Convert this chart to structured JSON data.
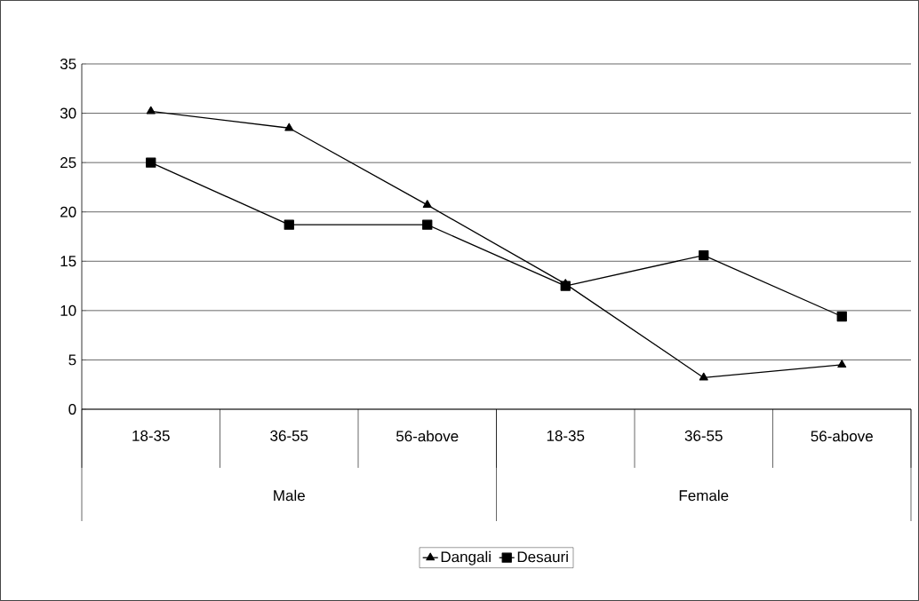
{
  "chart_data": {
    "type": "line",
    "categories": [
      "18-35",
      "36-55",
      "56-above",
      "18-35",
      "36-55",
      "56-above"
    ],
    "annotations": [
      "Male",
      "Female"
    ],
    "series": [
      {
        "name": "Dangali",
        "color": "#000000",
        "marker": "triangle",
        "values": [
          30.2,
          28.5,
          20.7,
          12.7,
          3.2,
          4.5
        ]
      },
      {
        "name": "Desauri",
        "color": "#000000",
        "marker": "square",
        "values": [
          25,
          18.7,
          18.7,
          12.5,
          15.6,
          9.4
        ]
      }
    ],
    "ylim": [
      0,
      35
    ],
    "yticks": [
      0,
      5,
      10,
      15,
      20,
      25,
      30,
      35
    ],
    "grid": "y",
    "legend": "bottom",
    "line_style": "solid"
  }
}
